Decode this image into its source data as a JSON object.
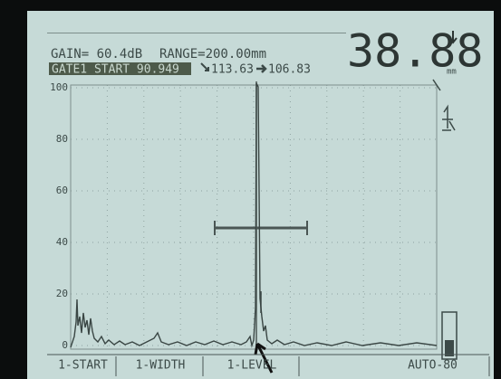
{
  "header": {
    "gain": "GAIN= 60.4dB",
    "range": "RANGE=200.00mm",
    "gate": "GATE1 START 90.949",
    "sound_path": "113.63",
    "surface_distance": "106.83",
    "reading": "38.88",
    "reading_unit": "mm"
  },
  "axis": {
    "labels": [
      "100",
      "80",
      "60",
      "40",
      "20",
      "0"
    ]
  },
  "menu": [
    "1-START",
    "1-WIDTH",
    "1-LEVEL",
    "AUTO-80"
  ]
}
